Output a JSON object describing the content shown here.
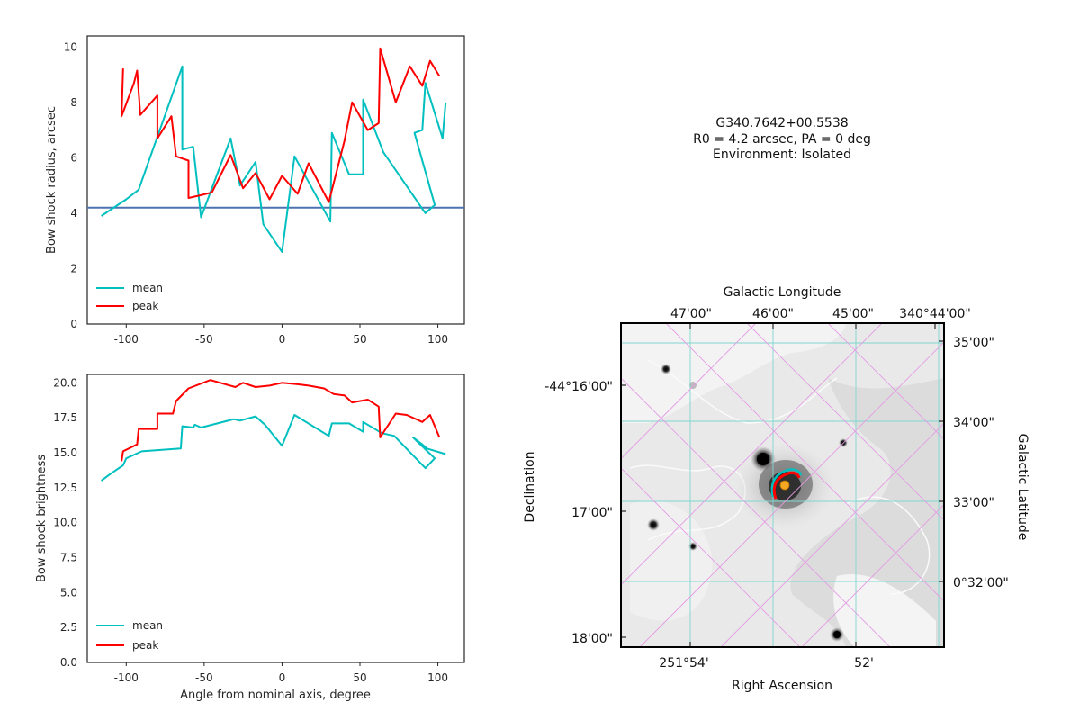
{
  "info": {
    "source_id": "G340.7642+00.5538",
    "line2": "R0 = 4.2 arcsec, PA = 0 deg",
    "line3": "Environment: Isolated"
  },
  "chart_data": [
    {
      "type": "line",
      "ylabel": "Bow shock radius, arcsec",
      "xlabel": "",
      "xlim": [
        -125,
        117
      ],
      "ylim": [
        0,
        10.4
      ],
      "xticks": [
        -100,
        -50,
        0,
        50,
        100
      ],
      "yticks": [
        0,
        2,
        4,
        6,
        8,
        10
      ],
      "hline": 4.2,
      "legend": "lower-left",
      "series": [
        {
          "name": "mean",
          "color": "#00bfbf",
          "points": [
            [
              -116,
              3.9
            ],
            [
              -100,
              4.5
            ],
            [
              -92,
              4.85
            ],
            [
              -64,
              9.3
            ],
            [
              -64,
              6.3
            ],
            [
              -57,
              6.4
            ],
            [
              -52,
              3.85
            ],
            [
              -33,
              6.7
            ],
            [
              -27,
              5.0
            ],
            [
              -17,
              5.85
            ],
            [
              -12,
              3.6
            ],
            [
              0,
              2.6
            ],
            [
              8,
              6.05
            ],
            [
              31,
              3.7
            ],
            [
              32,
              6.9
            ],
            [
              43,
              5.4
            ],
            [
              52,
              5.4
            ],
            [
              52,
              8.1
            ],
            [
              65,
              6.2
            ],
            [
              92,
              4.0
            ],
            [
              98,
              4.3
            ],
            [
              85,
              6.9
            ],
            [
              90,
              7.0
            ],
            [
              92,
              8.7
            ],
            [
              103,
              6.7
            ],
            [
              105,
              8.0
            ]
          ]
        },
        {
          "name": "peak",
          "color": "#ff0000",
          "points": [
            [
              -103,
              7.5
            ],
            [
              -102,
              9.2
            ],
            [
              -103,
              7.5
            ],
            [
              -95,
              8.7
            ],
            [
              -93,
              9.15
            ],
            [
              -91,
              7.55
            ],
            [
              -80,
              8.25
            ],
            [
              -80,
              6.7
            ],
            [
              -71,
              7.5
            ],
            [
              -68,
              6.05
            ],
            [
              -60,
              5.9
            ],
            [
              -60,
              4.55
            ],
            [
              -52,
              4.65
            ],
            [
              -45,
              4.75
            ],
            [
              -33,
              6.1
            ],
            [
              -25,
              4.9
            ],
            [
              -17,
              5.45
            ],
            [
              -8,
              4.5
            ],
            [
              0,
              5.35
            ],
            [
              10,
              4.7
            ],
            [
              17,
              5.8
            ],
            [
              30,
              4.4
            ],
            [
              40,
              6.6
            ],
            [
              45,
              8.0
            ],
            [
              55,
              7.0
            ],
            [
              62,
              7.25
            ],
            [
              63,
              9.95
            ],
            [
              73,
              8.0
            ],
            [
              82,
              9.3
            ],
            [
              90,
              8.6
            ],
            [
              95,
              9.5
            ],
            [
              101,
              8.95
            ]
          ]
        }
      ]
    },
    {
      "type": "line",
      "ylabel": "Bow shock brightness",
      "xlabel": "Angle from nominal axis, degree",
      "xlim": [
        -125,
        117
      ],
      "ylim": [
        0,
        20.6
      ],
      "xticks": [
        -100,
        -50,
        0,
        50,
        100
      ],
      "yticks": [
        0.0,
        2.5,
        5.0,
        7.5,
        10.0,
        12.5,
        15.0,
        17.5,
        20.0
      ],
      "legend": "lower-left",
      "series": [
        {
          "name": "mean",
          "color": "#00bfbf",
          "points": [
            [
              -116,
              13.0
            ],
            [
              -110,
              13.5
            ],
            [
              -102,
              14.1
            ],
            [
              -100,
              14.6
            ],
            [
              -90,
              15.1
            ],
            [
              -65,
              15.3
            ],
            [
              -64,
              16.9
            ],
            [
              -57,
              16.8
            ],
            [
              -56,
              17.0
            ],
            [
              -52,
              16.8
            ],
            [
              -31,
              17.4
            ],
            [
              -27,
              17.3
            ],
            [
              -17,
              17.6
            ],
            [
              -11,
              17.0
            ],
            [
              0,
              15.5
            ],
            [
              8,
              17.7
            ],
            [
              30,
              16.2
            ],
            [
              32,
              17.1
            ],
            [
              43,
              17.1
            ],
            [
              52,
              16.5
            ],
            [
              52,
              17.2
            ],
            [
              64,
              16.4
            ],
            [
              72,
              16.2
            ],
            [
              92,
              13.9
            ],
            [
              98,
              14.6
            ],
            [
              84,
              16.1
            ],
            [
              90,
              15.6
            ],
            [
              93,
              15.3
            ],
            [
              105,
              14.9
            ]
          ]
        },
        {
          "name": "peak",
          "color": "#ff0000",
          "points": [
            [
              -103,
              14.4
            ],
            [
              -102,
              15.1
            ],
            [
              -93,
              15.6
            ],
            [
              -92,
              16.7
            ],
            [
              -80,
              16.7
            ],
            [
              -80,
              17.8
            ],
            [
              -70,
              17.8
            ],
            [
              -68,
              18.7
            ],
            [
              -60,
              19.6
            ],
            [
              -46,
              20.2
            ],
            [
              -30,
              19.7
            ],
            [
              -25,
              20.0
            ],
            [
              -17,
              19.7
            ],
            [
              -8,
              19.8
            ],
            [
              0,
              20.0
            ],
            [
              10,
              19.9
            ],
            [
              17,
              19.8
            ],
            [
              27,
              19.6
            ],
            [
              33,
              19.2
            ],
            [
              40,
              19.1
            ],
            [
              45,
              18.6
            ],
            [
              55,
              18.8
            ],
            [
              62,
              18.3
            ],
            [
              63,
              16.1
            ],
            [
              73,
              17.8
            ],
            [
              80,
              17.7
            ],
            [
              90,
              17.2
            ],
            [
              95,
              17.7
            ],
            [
              101,
              16.1
            ]
          ]
        }
      ]
    }
  ],
  "sky": {
    "xlabel_bottom": "Right Ascension",
    "xlabel_top": "Galactic Longitude",
    "ylabel_left": "Declination",
    "ylabel_right": "Galactic Latitude",
    "ra_ticks": [
      "251°54'",
      "52'"
    ],
    "dec_ticks": [
      "-44°16'00\"",
      "17'00\"",
      "18'00\""
    ],
    "glon_ticks": [
      "47'00\"",
      "46'00\"",
      "45'00\"",
      "340°44'00\""
    ],
    "glat_ticks": [
      "35'00\"",
      "34'00\"",
      "33'00\"",
      "0°32'00\""
    ],
    "colors": {
      "radec_grid": "#7fd6d0",
      "gal_grid": "#e49be4",
      "arc_mean": "#00bfbf",
      "arc_peak": "#ff0000",
      "star_marker": "#f5a623"
    }
  }
}
